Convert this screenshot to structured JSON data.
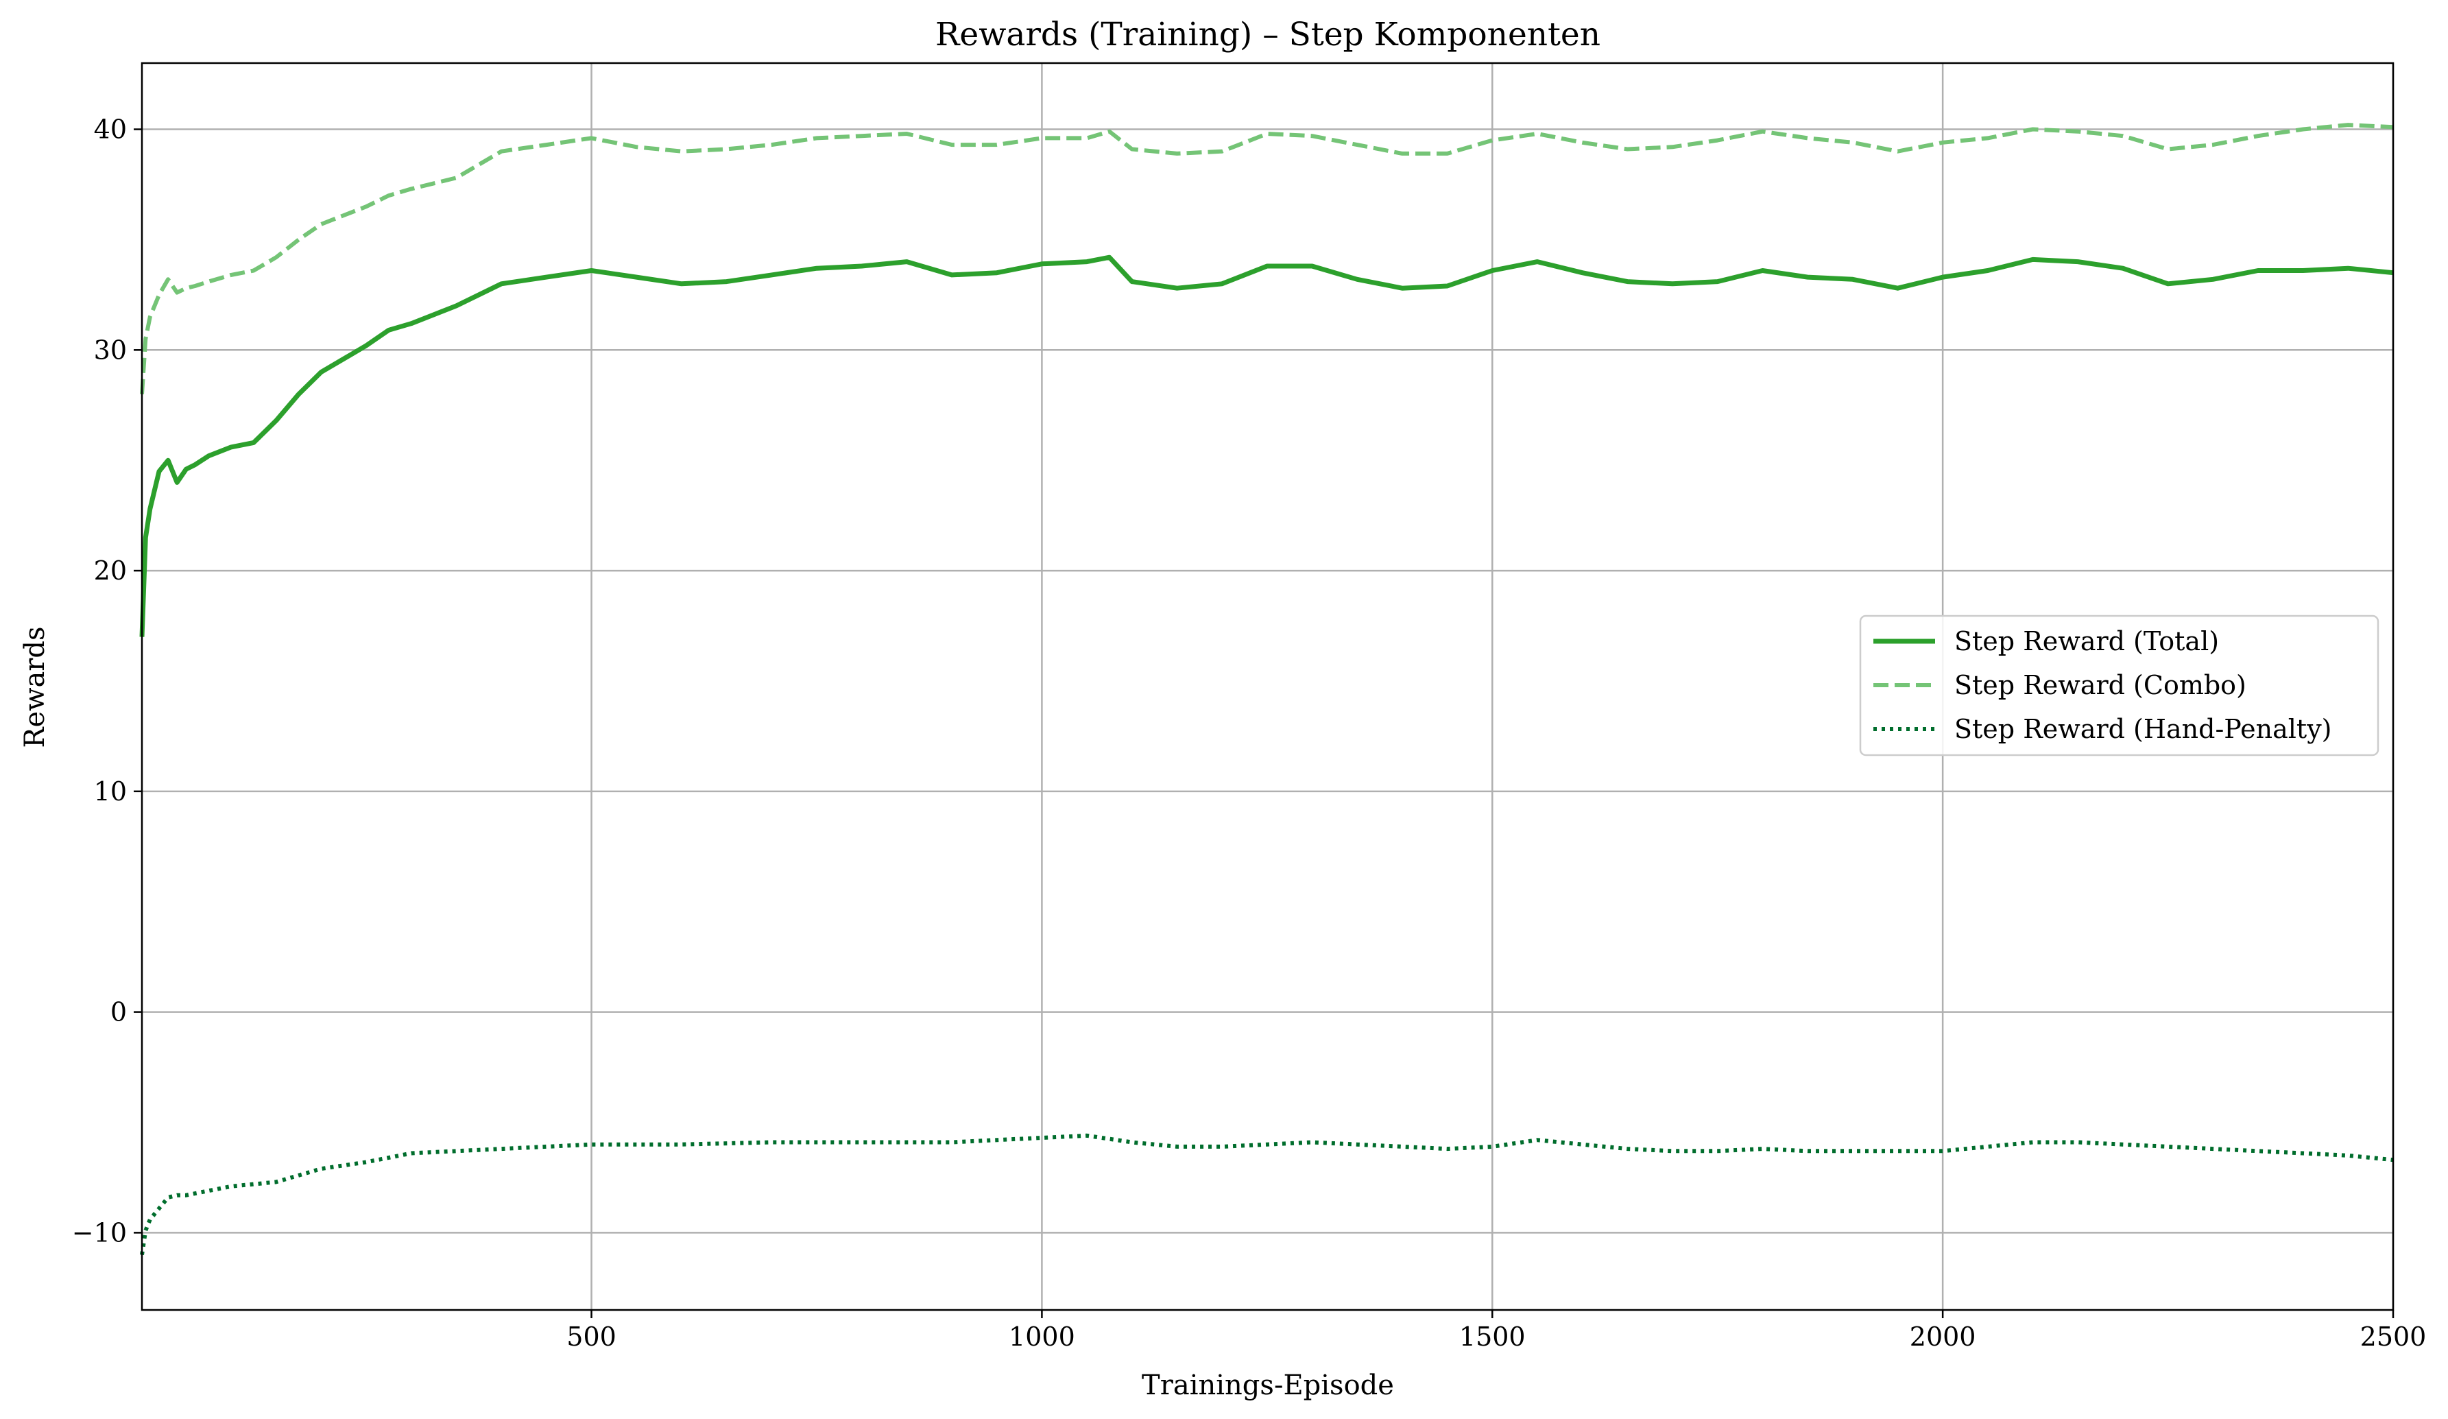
{
  "chart_data": {
    "type": "line",
    "title": "Rewards (Training) – Step Komponenten",
    "xlabel": "Trainings-Episode",
    "ylabel": "Rewards",
    "xlim": [
      1,
      2500
    ],
    "ylim": [
      -13.5,
      43
    ],
    "xticks": [
      500,
      1000,
      1500,
      2000,
      2500
    ],
    "yticks": [
      -10,
      0,
      10,
      20,
      30,
      40
    ],
    "xtick_labels": [
      "500",
      "1000",
      "1500",
      "2000",
      "2500"
    ],
    "ytick_labels": [
      "−10",
      "0",
      "10",
      "20",
      "30",
      "40"
    ],
    "grid": true,
    "legend_position": "center-right",
    "series": [
      {
        "name": "Step Reward (Total)",
        "color": "#2ca02c",
        "style": "solid",
        "x": [
          1,
          5,
          10,
          20,
          30,
          40,
          50,
          60,
          75,
          100,
          125,
          150,
          175,
          200,
          225,
          250,
          275,
          300,
          350,
          400,
          450,
          500,
          550,
          600,
          650,
          700,
          750,
          800,
          850,
          900,
          950,
          1000,
          1050,
          1075,
          1100,
          1150,
          1200,
          1250,
          1300,
          1350,
          1400,
          1450,
          1500,
          1550,
          1600,
          1650,
          1700,
          1750,
          1800,
          1850,
          1900,
          1950,
          2000,
          2050,
          2100,
          2150,
          2200,
          2250,
          2300,
          2350,
          2400,
          2450,
          2500
        ],
        "values": [
          17.0,
          21.5,
          22.8,
          24.5,
          25.0,
          24.0,
          24.6,
          24.8,
          25.2,
          25.6,
          25.8,
          26.8,
          28.0,
          29.0,
          29.6,
          30.2,
          30.9,
          31.2,
          32.0,
          33.0,
          33.3,
          33.6,
          33.3,
          33.0,
          33.1,
          33.4,
          33.7,
          33.8,
          34.0,
          33.4,
          33.5,
          33.9,
          34.0,
          34.2,
          33.1,
          32.8,
          33.0,
          33.8,
          33.8,
          33.2,
          32.8,
          32.9,
          33.6,
          34.0,
          33.5,
          33.1,
          33.0,
          33.1,
          33.6,
          33.3,
          33.2,
          32.8,
          33.3,
          33.6,
          34.1,
          34.0,
          33.7,
          33.0,
          33.2,
          33.6,
          33.6,
          33.7,
          33.5
        ]
      },
      {
        "name": "Step Reward (Combo)",
        "color": "#74c476",
        "style": "dashed",
        "x": [
          1,
          5,
          10,
          20,
          30,
          40,
          50,
          60,
          75,
          100,
          125,
          150,
          175,
          200,
          225,
          250,
          275,
          300,
          350,
          400,
          450,
          500,
          550,
          600,
          650,
          700,
          750,
          800,
          850,
          900,
          950,
          1000,
          1050,
          1075,
          1100,
          1150,
          1200,
          1250,
          1300,
          1350,
          1400,
          1450,
          1500,
          1550,
          1600,
          1650,
          1700,
          1750,
          1800,
          1850,
          1900,
          1950,
          2000,
          2050,
          2100,
          2150,
          2200,
          2250,
          2300,
          2350,
          2400,
          2450,
          2500
        ],
        "values": [
          28.0,
          30.5,
          31.5,
          32.5,
          33.2,
          32.6,
          32.8,
          32.9,
          33.1,
          33.4,
          33.6,
          34.2,
          35.0,
          35.7,
          36.1,
          36.5,
          37.0,
          37.3,
          37.8,
          39.0,
          39.3,
          39.6,
          39.2,
          39.0,
          39.1,
          39.3,
          39.6,
          39.7,
          39.8,
          39.3,
          39.3,
          39.6,
          39.6,
          39.9,
          39.1,
          38.9,
          39.0,
          39.8,
          39.7,
          39.3,
          38.9,
          38.9,
          39.5,
          39.8,
          39.4,
          39.1,
          39.2,
          39.5,
          39.9,
          39.6,
          39.4,
          39.0,
          39.4,
          39.6,
          40.0,
          39.9,
          39.7,
          39.1,
          39.3,
          39.7,
          40.0,
          40.2,
          40.1
        ]
      },
      {
        "name": "Step Reward (Hand-Penalty)",
        "color": "#006d2c",
        "style": "dotted",
        "x": [
          1,
          5,
          10,
          20,
          30,
          40,
          50,
          75,
          100,
          125,
          150,
          175,
          200,
          250,
          300,
          350,
          400,
          450,
          500,
          600,
          700,
          800,
          900,
          950,
          1000,
          1050,
          1100,
          1150,
          1200,
          1250,
          1300,
          1350,
          1400,
          1450,
          1500,
          1550,
          1600,
          1650,
          1700,
          1750,
          1800,
          1850,
          1900,
          1950,
          2000,
          2050,
          2100,
          2150,
          2200,
          2250,
          2300,
          2350,
          2400,
          2450,
          2500
        ],
        "values": [
          -11.0,
          -9.9,
          -9.4,
          -8.9,
          -8.4,
          -8.3,
          -8.3,
          -8.1,
          -7.9,
          -7.8,
          -7.7,
          -7.4,
          -7.1,
          -6.8,
          -6.4,
          -6.3,
          -6.2,
          -6.1,
          -6.0,
          -6.0,
          -5.9,
          -5.9,
          -5.9,
          -5.8,
          -5.7,
          -5.6,
          -5.9,
          -6.1,
          -6.1,
          -6.0,
          -5.9,
          -6.0,
          -6.1,
          -6.2,
          -6.1,
          -5.8,
          -6.0,
          -6.2,
          -6.3,
          -6.3,
          -6.2,
          -6.3,
          -6.3,
          -6.3,
          -6.3,
          -6.1,
          -5.9,
          -5.9,
          -6.0,
          -6.1,
          -6.2,
          -6.3,
          -6.4,
          -6.5,
          -6.7
        ]
      }
    ]
  }
}
